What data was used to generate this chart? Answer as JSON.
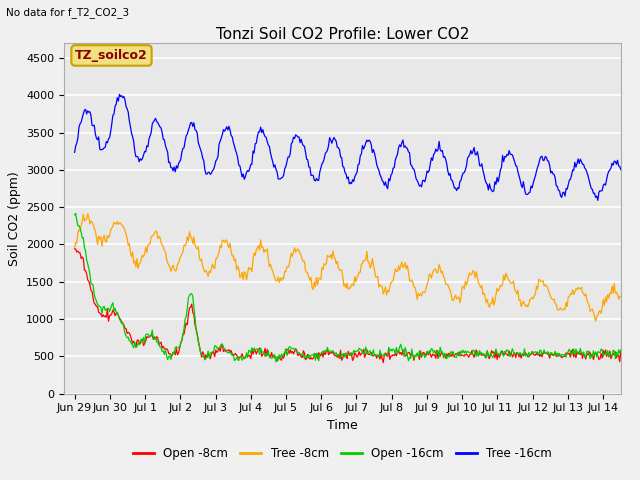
{
  "title": "Tonzi Soil CO2 Profile: Lower CO2",
  "subtitle": "No data for f_T2_CO2_3",
  "ylabel": "Soil CO2 (ppm)",
  "xlabel": "Time",
  "ylim": [
    0,
    4700
  ],
  "yticks": [
    0,
    500,
    1000,
    1500,
    2000,
    2500,
    3000,
    3500,
    4000,
    4500
  ],
  "legend_labels": [
    "Open -8cm",
    "Tree -8cm",
    "Open -16cm",
    "Tree -16cm"
  ],
  "legend_colors": [
    "#ff0000",
    "#ffa500",
    "#00cc00",
    "#0000ff"
  ],
  "inset_label": "TZ_soilco2",
  "inset_text_color": "#8b0000",
  "inset_box_color": "#f0e080",
  "inset_border_color": "#c8a000",
  "bg_color": "#e8e8e8",
  "plot_bg_color": "#f0f0f0",
  "grid_color": "#ffffff",
  "title_fontsize": 11,
  "axis_fontsize": 9,
  "tick_fontsize": 8,
  "n_points": 500,
  "xtick_labels": [
    "Jun 29",
    "Jun 30",
    "Jul 1",
    "Jul 2",
    "Jul 3",
    "Jul 4",
    "Jul 5",
    "Jul 6",
    "Jul 7",
    "Jul 8",
    "Jul 9",
    "Jul 10",
    "Jul 11",
    "Jul 12",
    "Jul 13",
    "Jul 14"
  ],
  "xtick_positions": [
    0,
    1,
    2,
    3,
    4,
    5,
    6,
    7,
    8,
    9,
    10,
    11,
    12,
    13,
    14,
    15
  ]
}
